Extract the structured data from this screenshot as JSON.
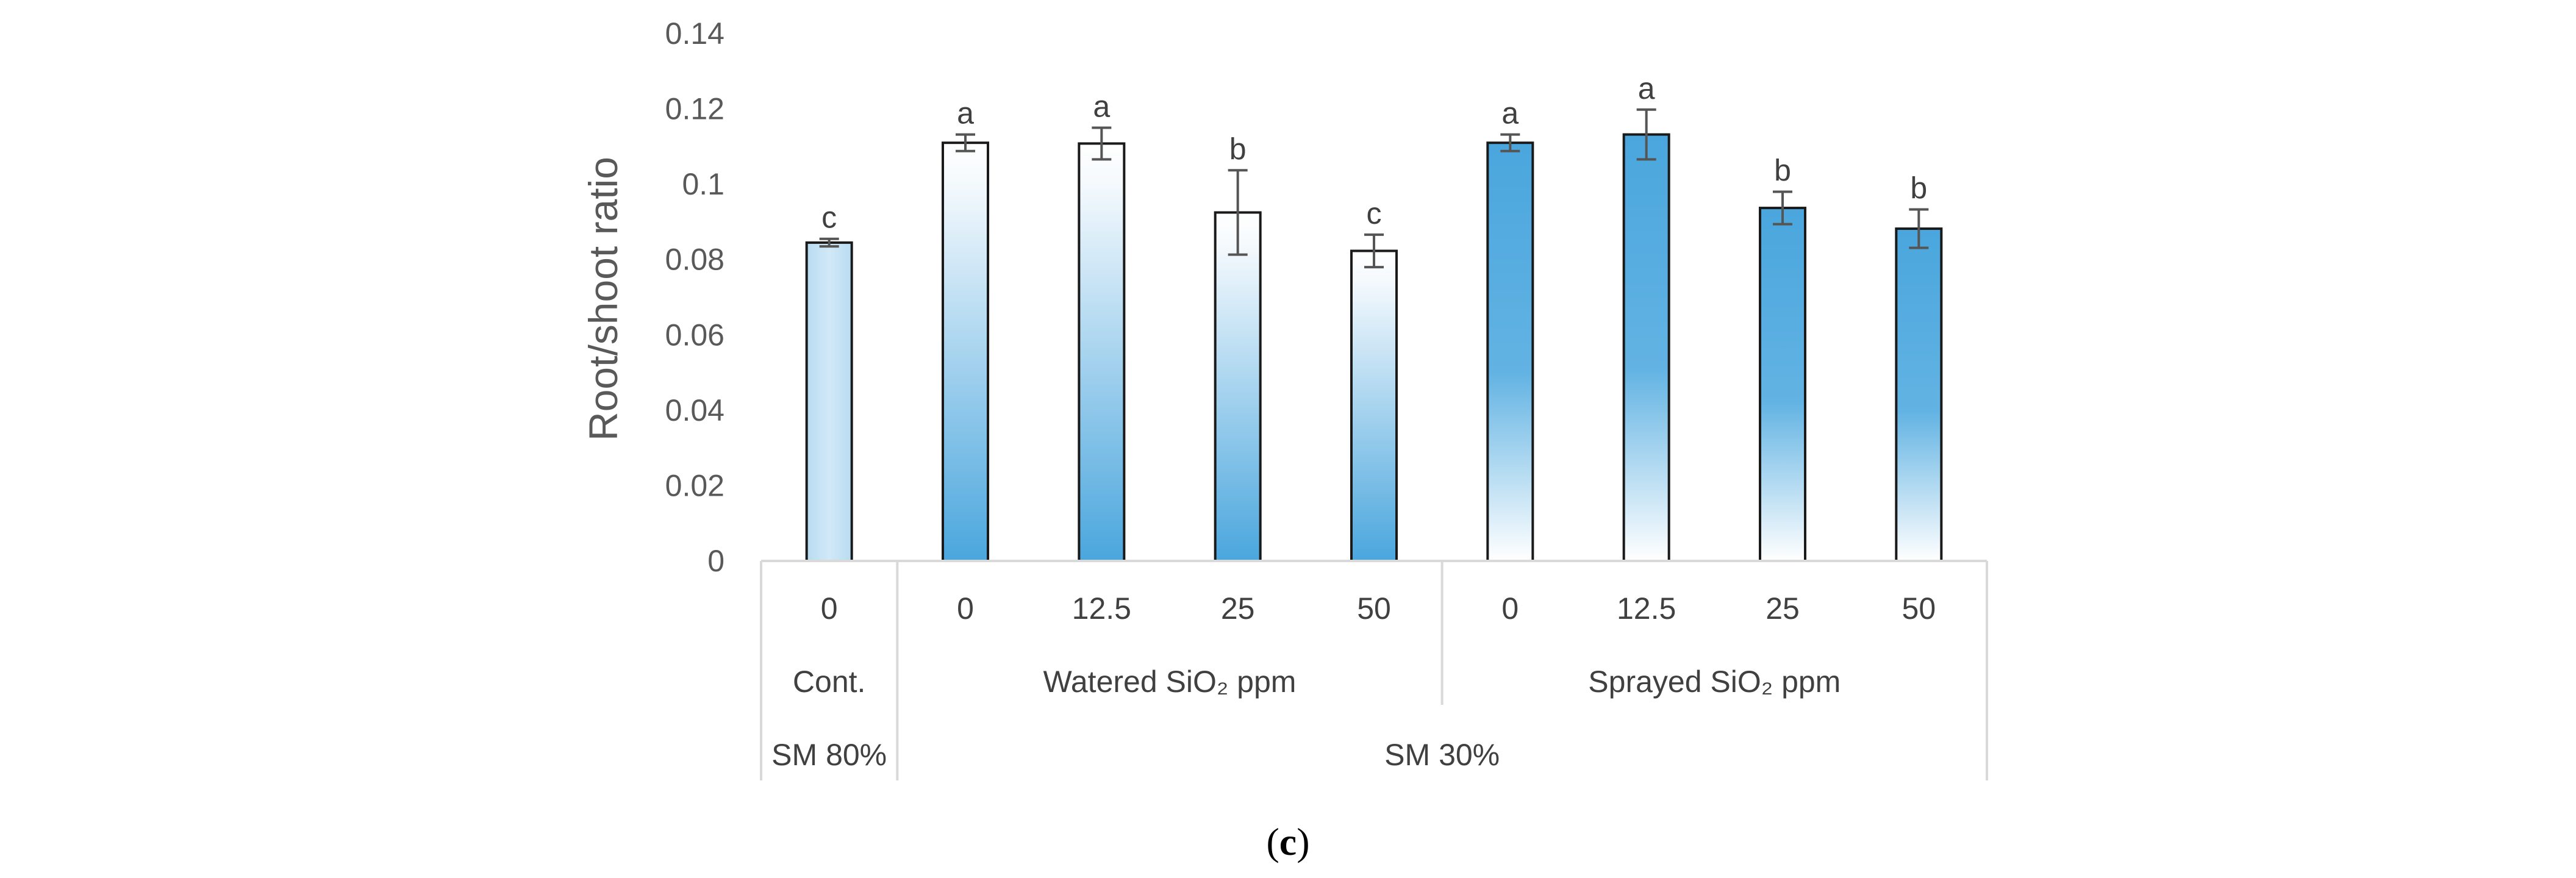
{
  "chart_data": {
    "type": "bar",
    "ylabel": "Root/shoot ratio",
    "ylim": [
      0,
      0.14
    ],
    "yticks": [
      "0",
      "0.02",
      "0.04",
      "0.06",
      "0.08",
      "0.1",
      "0.12",
      "0.14"
    ],
    "categories": [
      "0",
      "0",
      "12.5",
      "25",
      "50",
      "0",
      "12.5",
      "25",
      "50"
    ],
    "values": [
      0.0845,
      0.111,
      0.1108,
      0.0925,
      0.0823,
      0.111,
      0.1132,
      0.0937,
      0.0882
    ],
    "errors": [
      0.001,
      0.0022,
      0.0042,
      0.0112,
      0.0043,
      0.0022,
      0.0066,
      0.0043,
      0.0051
    ],
    "significance": [
      "c",
      "a",
      "a",
      "b",
      "c",
      "a",
      "a",
      "b",
      "b"
    ],
    "fill_styles": [
      "solid",
      "light",
      "light",
      "light",
      "light",
      "dark",
      "dark",
      "dark",
      "dark"
    ],
    "group_level_1": [
      {
        "label": "Cont.",
        "span": 1
      },
      {
        "label": "Watered SiO₂ ppm",
        "span": 4
      },
      {
        "label": "Sprayed SiO₂ ppm",
        "span": 4
      }
    ],
    "group_level_2": [
      {
        "label": "SM 80%",
        "span": 1
      },
      {
        "label": "SM 30%",
        "span": 8
      }
    ]
  },
  "caption": {
    "open": "(",
    "letter": "c",
    "close": ")"
  },
  "colors": {
    "bar_blue": "#4aa6dd",
    "bar_light": "#c5e1f4",
    "bar_outline": "#1a1a1a",
    "error_bar": "#555555",
    "grid_line": "#d9d9d9"
  }
}
